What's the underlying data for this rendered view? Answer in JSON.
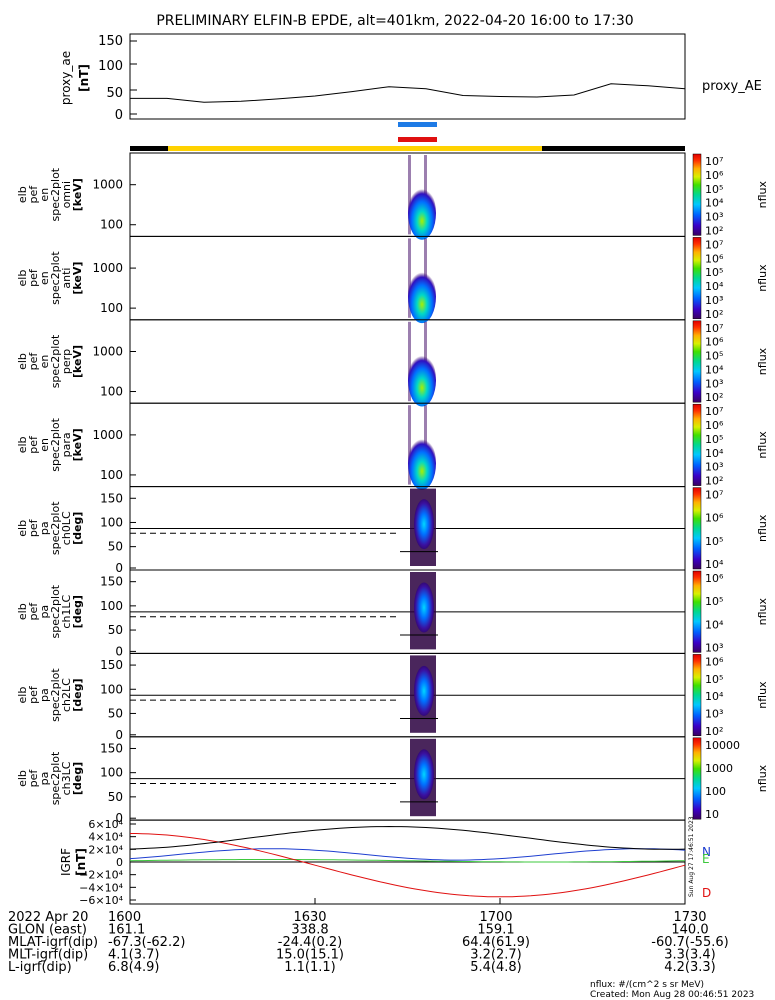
{
  "title": "PRELIMINARY ELFIN-B EPDE, alt=401km, 2022-04-20 16:00 to 17:30",
  "colors": {
    "sun_bar": "#ffd200",
    "shadow_bar": "#000000",
    "north": "#1e7be6",
    "south": "#e01010"
  },
  "proxy_panel": {
    "ylabel_line1": "proxy_ae",
    "ylabel_line2": "[nT]",
    "legend": "proxy_AE",
    "ticks": [
      "150",
      "100",
      "50",
      "0"
    ]
  },
  "panels": [
    {
      "label": [
        "elb",
        "pef",
        "en",
        "spec2plot",
        "omni",
        "[keV]"
      ],
      "ticks": [
        "1000",
        "100"
      ],
      "type": "energy",
      "cbar": {
        "ticks": [
          "10⁷",
          "10⁶",
          "10⁵",
          "10⁴",
          "10³",
          "10²"
        ],
        "label": "nflux"
      }
    },
    {
      "label": [
        "elb",
        "pef",
        "en",
        "spec2plot",
        "anti",
        "[keV]"
      ],
      "ticks": [
        "1000",
        "100"
      ],
      "type": "energy",
      "cbar": {
        "ticks": [
          "10⁷",
          "10⁶",
          "10⁵",
          "10⁴",
          "10³",
          "10²"
        ],
        "label": "nflux"
      }
    },
    {
      "label": [
        "elb",
        "pef",
        "en",
        "spec2plot",
        "perp",
        "[keV]"
      ],
      "ticks": [
        "1000",
        "100"
      ],
      "type": "energy",
      "cbar": {
        "ticks": [
          "10⁷",
          "10⁶",
          "10⁵",
          "10⁴",
          "10³",
          "10²"
        ],
        "label": "nflux"
      }
    },
    {
      "label": [
        "elb",
        "pef",
        "en",
        "spec2plot",
        "para",
        "[keV]"
      ],
      "ticks": [
        "1000",
        "100"
      ],
      "type": "energy",
      "cbar": {
        "ticks": [
          "10⁷",
          "10⁶",
          "10⁵",
          "10⁴",
          "10³",
          "10²"
        ],
        "label": "nflux"
      }
    },
    {
      "label": [
        "elb",
        "pef",
        "pa",
        "spec2plot",
        "ch0LC",
        "[deg]"
      ],
      "ticks": [
        "150",
        "100",
        "50",
        "0"
      ],
      "type": "pa",
      "cbar": {
        "ticks": [
          "10⁷",
          "10⁶",
          "10⁵",
          "10⁴"
        ],
        "label": "nflux"
      }
    },
    {
      "label": [
        "elb",
        "pef",
        "pa",
        "spec2plot",
        "ch1LC",
        "[deg]"
      ],
      "ticks": [
        "150",
        "100",
        "50",
        "0"
      ],
      "type": "pa",
      "cbar": {
        "ticks": [
          "10⁶",
          "10⁵",
          "10⁴",
          "10³"
        ],
        "label": "nflux"
      }
    },
    {
      "label": [
        "elb",
        "pef",
        "pa",
        "spec2plot",
        "ch2LC",
        "[deg]"
      ],
      "ticks": [
        "150",
        "100",
        "50",
        "0"
      ],
      "type": "pa",
      "cbar": {
        "ticks": [
          "10⁶",
          "10⁵",
          "10⁴",
          "10³",
          "10²"
        ],
        "label": "nflux"
      }
    },
    {
      "label": [
        "elb",
        "pef",
        "pa",
        "spec2plot",
        "ch3LC",
        "[deg]"
      ],
      "ticks": [
        "150",
        "100",
        "50",
        "0"
      ],
      "type": "pa",
      "cbar": {
        "ticks": [
          "10000",
          "1000",
          "100",
          "10"
        ],
        "label": "nflux"
      }
    }
  ],
  "igrf_panel": {
    "label": [
      "IGRF",
      "[nT]"
    ],
    "ticks": [
      "6×10⁴",
      "4×10⁴",
      "2×10⁴",
      "0",
      "−2×10⁴",
      "−4×10⁴",
      "−6×10⁴"
    ],
    "components": [
      "N",
      "E",
      "D"
    ],
    "component_colors": [
      "#1f3fd0",
      "#3cc83c",
      "#e01010"
    ],
    "side_text": "Sun Aug 27 17:46:51 2023"
  },
  "chart_data": {
    "type": "line",
    "x_ticks": [
      "1600",
      "1630",
      "1700",
      "1730"
    ],
    "xlim": [
      "16:00",
      "17:30"
    ],
    "series": [
      {
        "name": "proxy_AE",
        "x": [
          0,
          6,
          12,
          18,
          24,
          30,
          36,
          42,
          48,
          54,
          60,
          66,
          72,
          78,
          84,
          90
        ],
        "values": [
          32,
          32,
          24,
          26,
          31,
          37,
          46,
          56,
          52,
          38,
          36,
          35,
          39,
          62,
          58,
          52
        ]
      }
    ]
  },
  "footer": {
    "rows": [
      [
        "2022 Apr 20",
        "1600",
        "1630",
        "1700",
        "1730"
      ],
      [
        "GLON (east)",
        "161.1",
        "338.8",
        "159.1",
        "140.0"
      ],
      [
        "MLAT-igrf(dip)",
        "-67.3(-62.2)",
        "-24.4(0.2)",
        "64.4(61.9)",
        "-60.7(-55.6)"
      ],
      [
        "MLT-igrf(dip)",
        "4.1(3.7)",
        "15.0(15.1)",
        "3.2(2.7)",
        "3.3(3.4)"
      ],
      [
        "L-igrf(dip)",
        "6.8(4.9)",
        "1.1(1.1)",
        "5.4(4.8)",
        "4.2(3.3)"
      ]
    ],
    "unit_note": "nflux: #/(cm^2 s sr MeV)",
    "created": "Created: Mon Aug 28 00:46:51 2023"
  }
}
